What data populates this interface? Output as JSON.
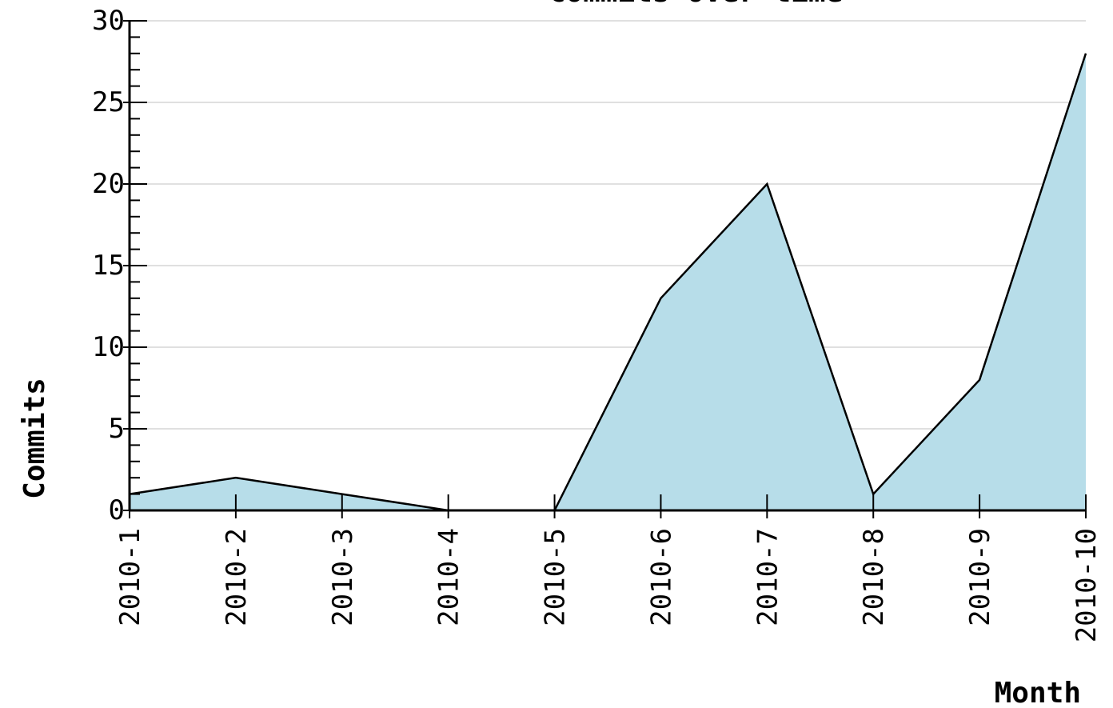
{
  "chart_data": {
    "type": "area",
    "title": "Commits over time",
    "xlabel": "Month",
    "ylabel": "Commits",
    "categories": [
      "2010-1",
      "2010-2",
      "2010-3",
      "2010-4",
      "2010-5",
      "2010-6",
      "2010-7",
      "2010-8",
      "2010-9",
      "2010-10"
    ],
    "series": [
      {
        "values": [
          1,
          2,
          1,
          0,
          0,
          13,
          20,
          1,
          8,
          28
        ]
      }
    ],
    "ylim": [
      0,
      30
    ],
    "yticks": [
      0,
      5,
      10,
      15,
      20,
      25,
      30
    ],
    "grid": true,
    "legend": "none",
    "colors": {
      "fill": "#b7dde9",
      "line": "#000000",
      "grid": "#e0e0e0",
      "axis": "#000000"
    }
  }
}
